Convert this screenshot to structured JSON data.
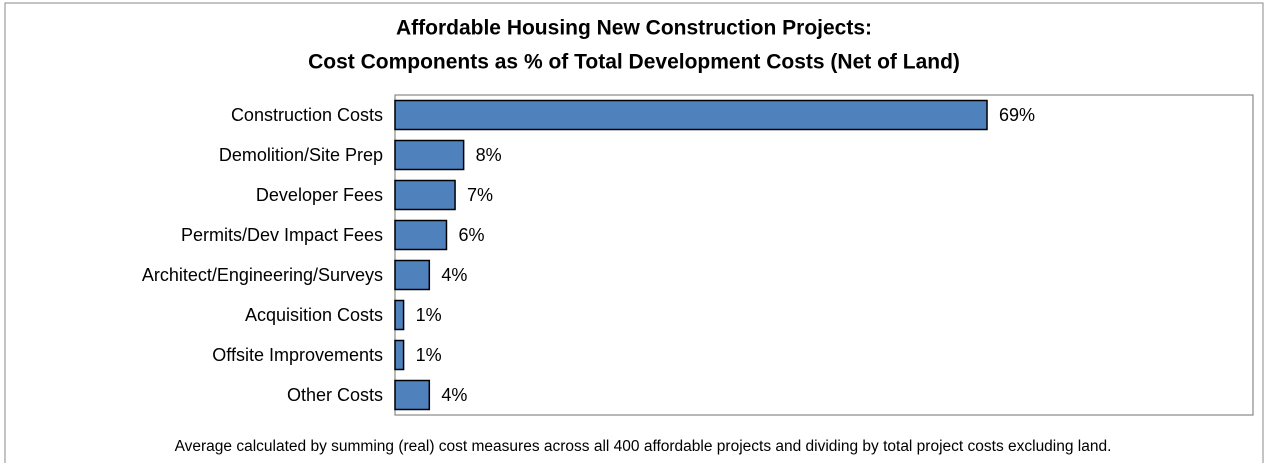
{
  "chart_data": {
    "type": "hbar",
    "title": [
      "Affordable Housing New Construction Projects:",
      "Cost Components as % of Total Development Costs (Net of Land)"
    ],
    "categories": [
      "Construction Costs",
      "Demolition/Site Prep",
      "Developer Fees",
      "Permits/Dev Impact Fees",
      "Architect/Engineering/Surveys",
      "Acquisition Costs",
      "Offsite Improvements",
      "Other Costs"
    ],
    "values": [
      69,
      8,
      7,
      6,
      4,
      1,
      1,
      4
    ],
    "value_labels": [
      "69%",
      "8%",
      "7%",
      "6%",
      "4%",
      "1%",
      "1%",
      "4%"
    ],
    "color": "#4f81bd",
    "xlim": [
      0,
      100
    ],
    "note": "Average calculated by summing (real) cost measures across all 400 affordable projects and dividing by total project costs excluding land."
  }
}
